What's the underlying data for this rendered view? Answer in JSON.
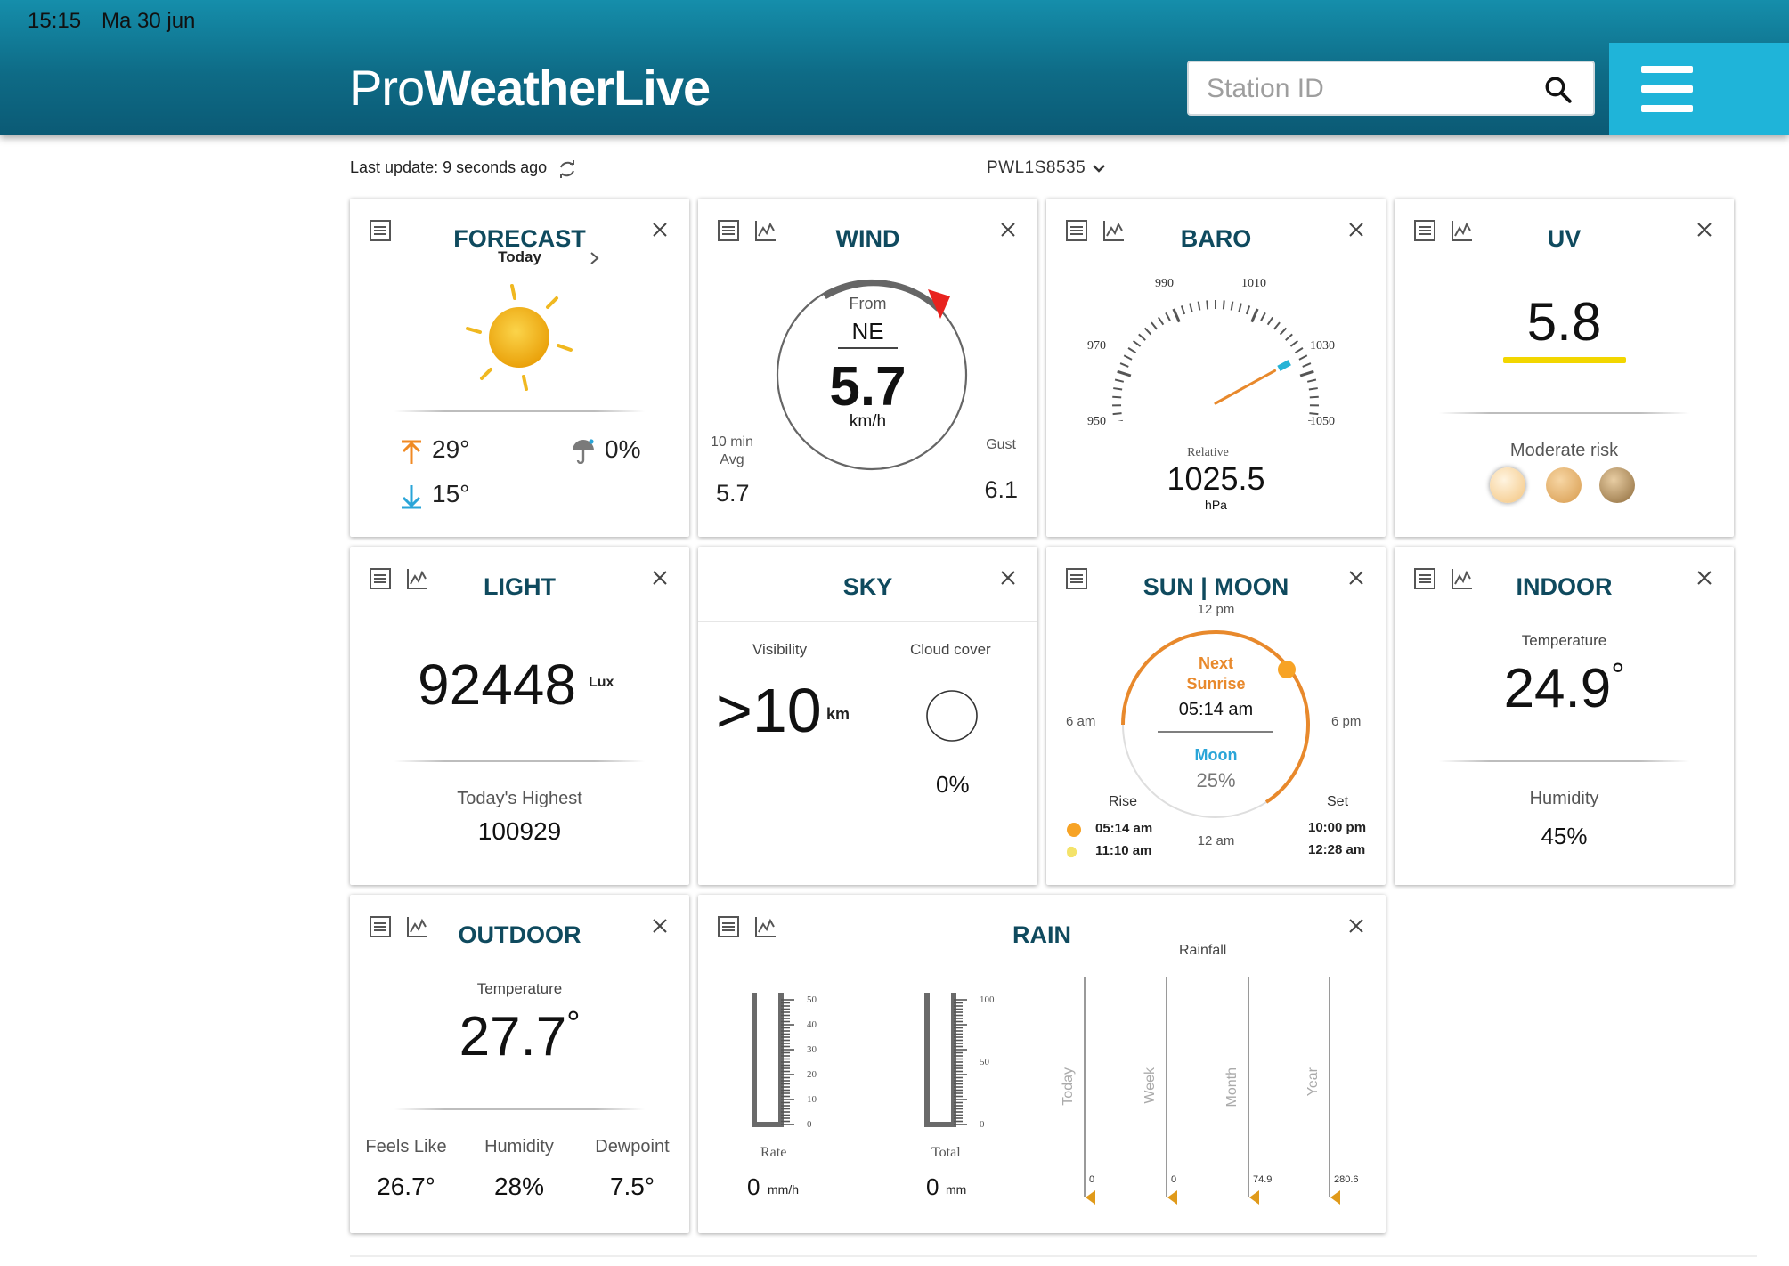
{
  "status_bar": {
    "time": "15:15",
    "date": "Ma 30 jun"
  },
  "header": {
    "logo_light": "Pro",
    "logo_bold": "WeatherLive",
    "search_placeholder": "Station ID"
  },
  "info": {
    "last_update": "Last update: 9 seconds ago",
    "station": "PWL1S8535"
  },
  "colors": {
    "header": "#0e6b86",
    "menu": "#1fb4d9",
    "title": "#0f4a5e",
    "accent_orange": "#e8892c",
    "uv_yellow": "#f2d600"
  },
  "forecast": {
    "title": "FORECAST",
    "day": "Today",
    "high": "29°",
    "low": "15°",
    "precip": "0%"
  },
  "wind": {
    "title": "WIND",
    "from_label": "From",
    "direction": "NE",
    "speed": "5.7",
    "unit": "km/h",
    "avg_label_1": "10 min",
    "avg_label_2": "Avg",
    "avg_value": "5.7",
    "gust_label": "Gust",
    "gust_value": "6.1"
  },
  "baro": {
    "title": "BARO",
    "ticks": [
      "950",
      "970",
      "990",
      "1010",
      "1030",
      "1050"
    ],
    "relative_label": "Relative",
    "value": "1025.5",
    "unit": "hPa",
    "gauge_value": 1025.5,
    "gauge_min": 950,
    "gauge_max": 1050
  },
  "uv": {
    "title": "UV",
    "value": "5.8",
    "risk": "Moderate risk"
  },
  "light": {
    "title": "LIGHT",
    "value": "92448",
    "unit": "Lux",
    "highest_label": "Today's Highest",
    "highest_value": "100929"
  },
  "sky": {
    "title": "SKY",
    "visibility_label": "Visibility",
    "visibility_value": ">10",
    "visibility_unit": "km",
    "cloud_label": "Cloud cover",
    "cloud_value": "0%"
  },
  "sunmoon": {
    "title": "SUN | MOON",
    "noon": "12 pm",
    "am6": "6 am",
    "pm6": "6 pm",
    "midnight": "12 am",
    "next_1": "Next",
    "next_2": "Sunrise",
    "next_time": "05:14 am",
    "moon_label": "Moon",
    "moon_value": "25%",
    "rise_label": "Rise",
    "set_label": "Set",
    "sun_rise": "05:14 am",
    "sun_set": "10:00 pm",
    "moon_rise": "11:10 am",
    "moon_set": "12:28 am"
  },
  "indoor": {
    "title": "INDOOR",
    "temp_label": "Temperature",
    "temp_value": "24.9",
    "deg": "°",
    "humidity_label": "Humidity",
    "humidity_value": "45%"
  },
  "outdoor": {
    "title": "OUTDOOR",
    "temp_label": "Temperature",
    "temp_value": "27.7",
    "deg": "°",
    "feels_label": "Feels Like",
    "feels_value": "26.7°",
    "humidity_label": "Humidity",
    "humidity_value": "28%",
    "dew_label": "Dewpoint",
    "dew_value": "7.5°"
  },
  "rain": {
    "title": "RAIN",
    "rainfall_label": "Rainfall",
    "rate_label": "Rate",
    "rate_value": "0",
    "rate_unit": "mm/h",
    "rate_ticks": [
      "50",
      "40",
      "30",
      "20",
      "10",
      "0"
    ],
    "total_label": "Total",
    "total_value": "0",
    "total_unit": "mm",
    "total_ticks": [
      "100",
      "50",
      "0"
    ],
    "bars": [
      {
        "label": "Today",
        "value": "0",
        "amount": 0
      },
      {
        "label": "Week",
        "value": "0",
        "amount": 0
      },
      {
        "label": "Month",
        "value": "74.9",
        "amount": 74.9
      },
      {
        "label": "Year",
        "value": "280.6",
        "amount": 280.6
      }
    ]
  }
}
